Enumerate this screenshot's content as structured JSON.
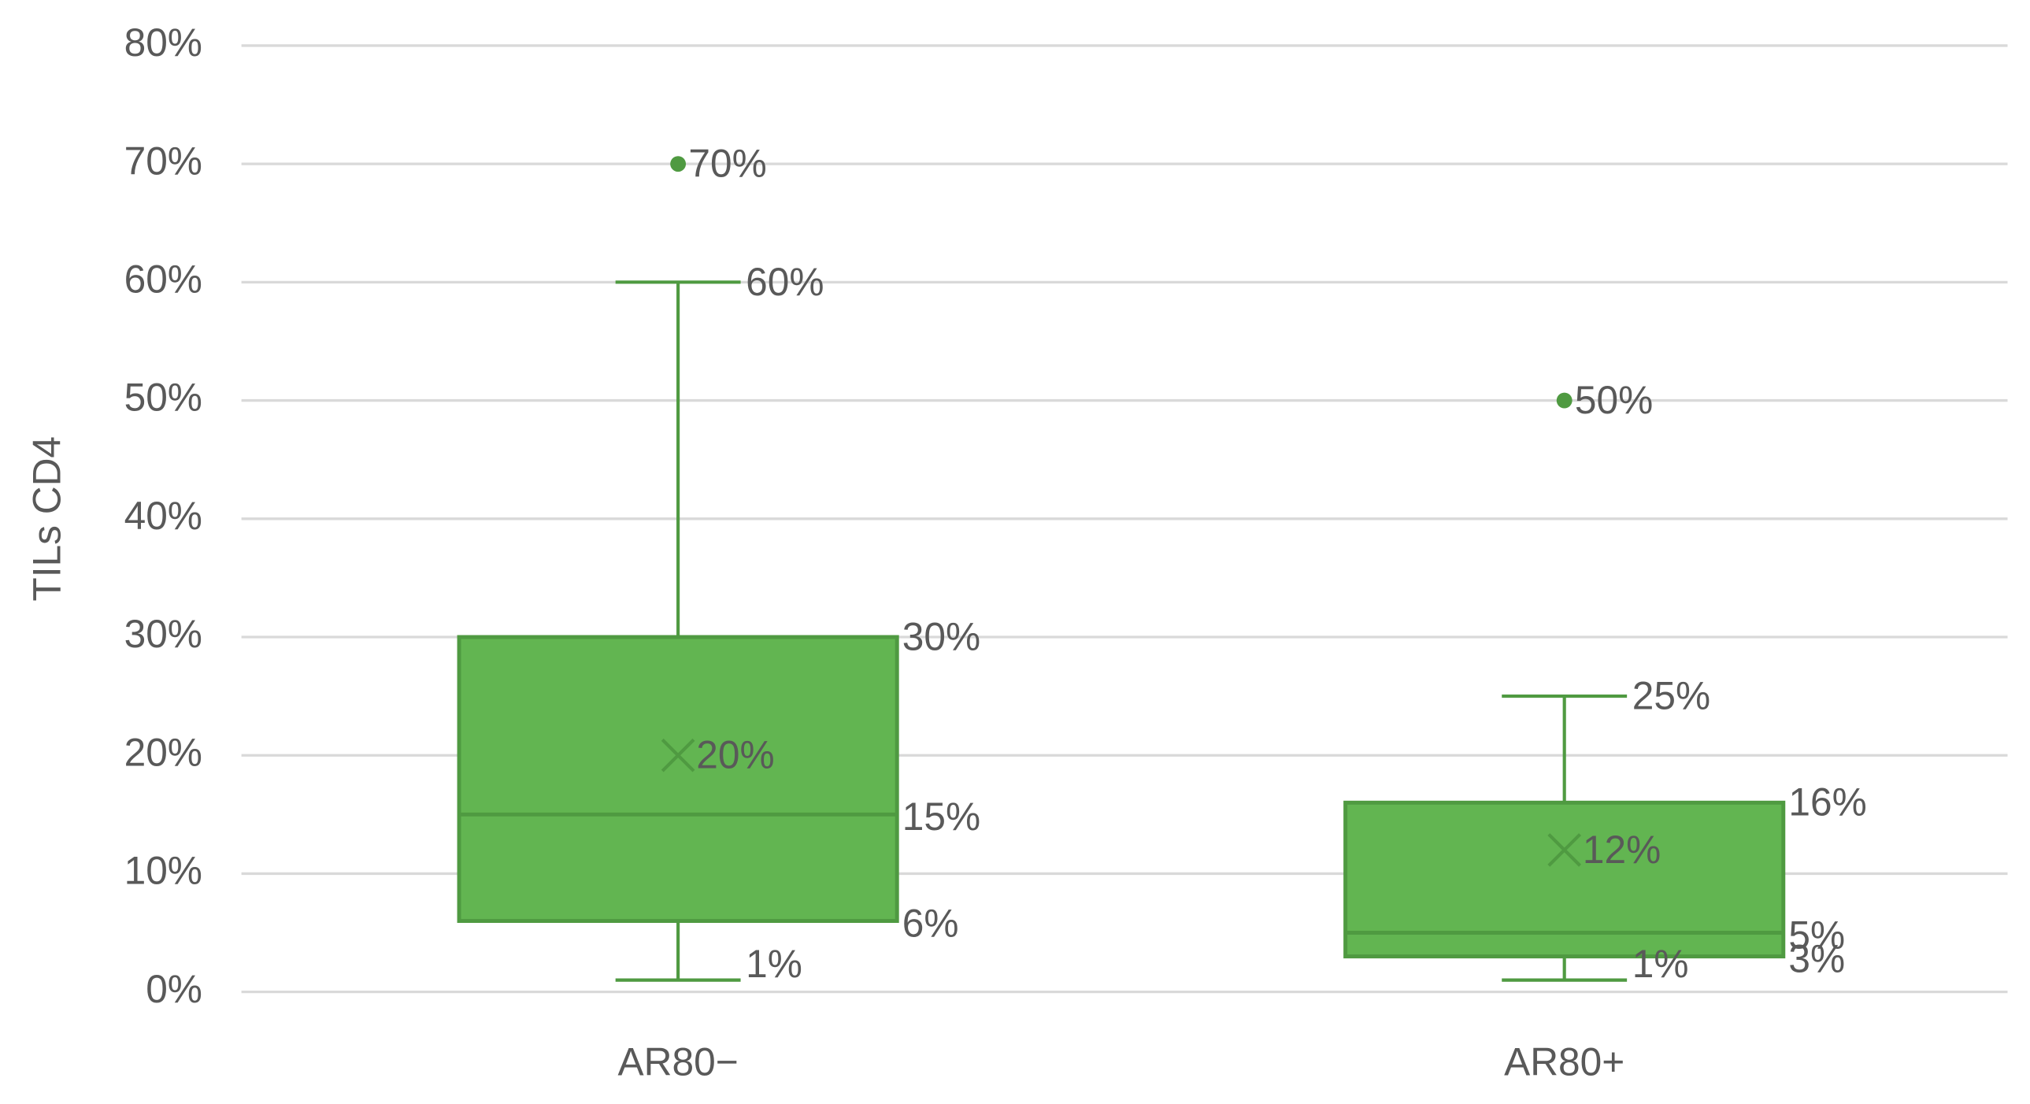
{
  "chart_data": {
    "type": "box",
    "y_label": "TILs CD4",
    "categories": [
      "AR80−",
      "AR80+"
    ],
    "color": "#62b551",
    "edge_color": "#4f9a41",
    "grid": true,
    "ylim": [
      0,
      80
    ],
    "yticks": [
      {
        "value": 0,
        "label": "0%"
      },
      {
        "value": 10,
        "label": "10%"
      },
      {
        "value": 20,
        "label": "20%"
      },
      {
        "value": 30,
        "label": "30%"
      },
      {
        "value": 40,
        "label": "40%"
      },
      {
        "value": 50,
        "label": "50%"
      },
      {
        "value": 60,
        "label": "60%"
      },
      {
        "value": 70,
        "label": "70%"
      },
      {
        "value": 80,
        "label": "80%"
      }
    ],
    "boxes": [
      {
        "min": 1,
        "q1": 6,
        "median": 15,
        "q3": 30,
        "max": 60,
        "mean": 20,
        "outliers": [
          70
        ],
        "value_labels": {
          "min": "1%",
          "q1": "6%",
          "median": "15%",
          "q3": "30%",
          "max": "60%",
          "mean": "20%",
          "outliers": [
            "70%"
          ]
        }
      },
      {
        "min": 1,
        "q1": 3,
        "median": 5,
        "q3": 16,
        "max": 25,
        "mean": 12,
        "outliers": [
          50
        ],
        "value_labels": {
          "min": "1%",
          "q1": "3%",
          "median": "5%",
          "q3": "16%",
          "max": "25%",
          "mean": "12%",
          "outliers": [
            "50%"
          ]
        }
      }
    ]
  }
}
